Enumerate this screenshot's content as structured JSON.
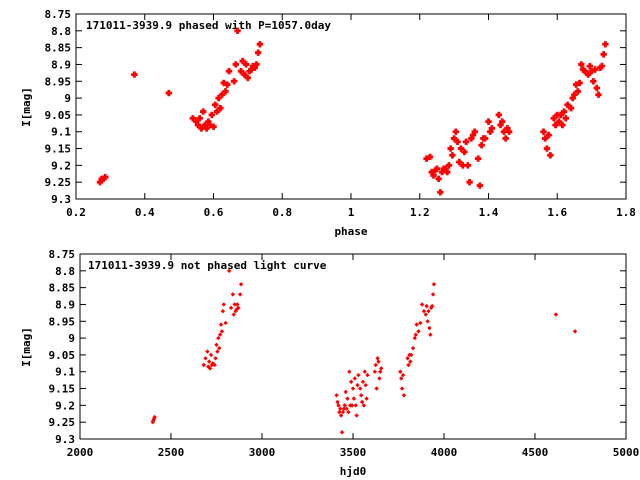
{
  "chart_data": [
    {
      "type": "scatter",
      "title": "171011-3939.9 phased with P=1057.0day",
      "xlabel": "phase",
      "ylabel": "I[mag]",
      "xlim": [
        0.2,
        1.8
      ],
      "ylim": [
        8.75,
        9.3
      ],
      "y_inverted": true,
      "grid": false,
      "color": "#ff0000",
      "xticks": [
        0.2,
        0.4,
        0.6,
        0.8,
        1.0,
        1.2,
        1.4,
        1.6,
        1.8
      ],
      "xtick_labels": [
        "0.2",
        "0.4",
        "0.6",
        "0.8",
        "1",
        "1.2",
        "1.4",
        "1.6",
        "1.8"
      ],
      "yticks": [
        8.75,
        8.8,
        8.85,
        8.9,
        8.95,
        9.0,
        9.05,
        9.1,
        9.15,
        9.2,
        9.25,
        9.3
      ],
      "ytick_labels": [
        "8.75",
        "8.8",
        "8.85",
        "8.9",
        "8.95",
        "9",
        "9.05",
        "9.1",
        "9.15",
        "9.2",
        "9.25",
        "9.3"
      ],
      "points": [
        [
          0.27,
          9.25
        ],
        [
          0.275,
          9.24
        ],
        [
          0.28,
          9.24
        ],
        [
          0.285,
          9.235
        ],
        [
          0.37,
          8.93
        ],
        [
          0.47,
          8.985
        ],
        [
          0.54,
          9.06
        ],
        [
          0.55,
          9.07
        ],
        [
          0.555,
          9.08
        ],
        [
          0.56,
          9.06
        ],
        [
          0.565,
          9.09
        ],
        [
          0.57,
          9.04
        ],
        [
          0.575,
          9.08
        ],
        [
          0.58,
          9.09
        ],
        [
          0.585,
          9.07
        ],
        [
          0.59,
          9.08
        ],
        [
          0.595,
          9.05
        ],
        [
          0.6,
          9.085
        ],
        [
          0.605,
          9.02
        ],
        [
          0.61,
          9.04
        ],
        [
          0.615,
          9.0
        ],
        [
          0.62,
          9.03
        ],
        [
          0.625,
          8.99
        ],
        [
          0.63,
          8.955
        ],
        [
          0.635,
          8.98
        ],
        [
          0.64,
          8.96
        ],
        [
          0.645,
          8.92
        ],
        [
          0.66,
          8.95
        ],
        [
          0.665,
          8.9
        ],
        [
          0.67,
          8.8
        ],
        [
          0.68,
          8.92
        ],
        [
          0.685,
          8.89
        ],
        [
          0.69,
          8.93
        ],
        [
          0.695,
          8.9
        ],
        [
          0.7,
          8.94
        ],
        [
          0.705,
          8.92
        ],
        [
          0.71,
          8.915
        ],
        [
          0.715,
          8.905
        ],
        [
          0.72,
          8.91
        ],
        [
          0.725,
          8.9
        ],
        [
          0.73,
          8.865
        ],
        [
          0.735,
          8.84
        ],
        [
          1.22,
          9.18
        ],
        [
          1.23,
          9.175
        ],
        [
          1.235,
          9.22
        ],
        [
          1.24,
          9.23
        ],
        [
          1.245,
          9.215
        ],
        [
          1.25,
          9.21
        ],
        [
          1.255,
          9.24
        ],
        [
          1.26,
          9.28
        ],
        [
          1.265,
          9.22
        ],
        [
          1.27,
          9.21
        ],
        [
          1.275,
          9.21
        ],
        [
          1.28,
          9.22
        ],
        [
          1.285,
          9.2
        ],
        [
          1.29,
          9.15
        ],
        [
          1.295,
          9.17
        ],
        [
          1.3,
          9.12
        ],
        [
          1.305,
          9.1
        ],
        [
          1.31,
          9.13
        ],
        [
          1.315,
          9.19
        ],
        [
          1.32,
          9.15
        ],
        [
          1.325,
          9.2
        ],
        [
          1.33,
          9.16
        ],
        [
          1.335,
          9.13
        ],
        [
          1.34,
          9.2
        ],
        [
          1.345,
          9.25
        ],
        [
          1.35,
          9.12
        ],
        [
          1.355,
          9.11
        ],
        [
          1.36,
          9.1
        ],
        [
          1.37,
          9.18
        ],
        [
          1.375,
          9.26
        ],
        [
          1.38,
          9.14
        ],
        [
          1.385,
          9.12
        ],
        [
          1.39,
          9.12
        ],
        [
          1.4,
          9.07
        ],
        [
          1.405,
          9.1
        ],
        [
          1.41,
          9.09
        ],
        [
          1.43,
          9.05
        ],
        [
          1.435,
          9.08
        ],
        [
          1.44,
          9.07
        ],
        [
          1.445,
          9.1
        ],
        [
          1.45,
          9.12
        ],
        [
          1.455,
          9.09
        ],
        [
          1.46,
          9.1
        ],
        [
          1.56,
          9.1
        ],
        [
          1.565,
          9.12
        ],
        [
          1.57,
          9.15
        ],
        [
          1.575,
          9.11
        ],
        [
          1.58,
          9.17
        ],
        [
          1.59,
          9.06
        ],
        [
          1.595,
          9.08
        ],
        [
          1.6,
          9.05
        ],
        [
          1.605,
          9.07
        ],
        [
          1.61,
          9.05
        ],
        [
          1.615,
          9.08
        ],
        [
          1.62,
          9.04
        ],
        [
          1.625,
          9.06
        ],
        [
          1.63,
          9.02
        ],
        [
          1.64,
          9.03
        ],
        [
          1.645,
          9.0
        ],
        [
          1.65,
          8.99
        ],
        [
          1.655,
          8.96
        ],
        [
          1.66,
          8.98
        ],
        [
          1.665,
          8.955
        ],
        [
          1.67,
          8.9
        ],
        [
          1.675,
          8.915
        ],
        [
          1.68,
          8.92
        ],
        [
          1.69,
          8.93
        ],
        [
          1.695,
          8.905
        ],
        [
          1.7,
          8.92
        ],
        [
          1.705,
          8.95
        ],
        [
          1.71,
          8.915
        ],
        [
          1.715,
          8.97
        ],
        [
          1.72,
          8.99
        ],
        [
          1.725,
          8.91
        ],
        [
          1.73,
          8.905
        ],
        [
          1.735,
          8.87
        ],
        [
          1.74,
          8.84
        ]
      ]
    },
    {
      "type": "scatter",
      "title": "171011-3939.9 not phased light curve",
      "xlabel": "hjd0",
      "ylabel": "I[mag]",
      "xlim": [
        2000,
        5000
      ],
      "ylim": [
        8.75,
        9.3
      ],
      "y_inverted": true,
      "grid": false,
      "color": "#ff0000",
      "xticks": [
        2000,
        2500,
        3000,
        3500,
        4000,
        4500,
        5000
      ],
      "xtick_labels": [
        "2000",
        "2500",
        "3000",
        "3500",
        "4000",
        "4500",
        "5000"
      ],
      "yticks": [
        8.75,
        8.8,
        8.85,
        8.9,
        8.95,
        9.0,
        9.05,
        9.1,
        9.15,
        9.2,
        9.25,
        9.3
      ],
      "ytick_labels": [
        "8.75",
        "8.8",
        "8.85",
        "8.9",
        "8.95",
        "9",
        "9.05",
        "9.1",
        "9.15",
        "9.2",
        "9.25",
        "9.3"
      ],
      "points": [
        [
          2400,
          9.25
        ],
        [
          2403,
          9.245
        ],
        [
          2407,
          9.24
        ],
        [
          2410,
          9.235
        ],
        [
          2680,
          9.08
        ],
        [
          2690,
          9.06
        ],
        [
          2700,
          9.04
        ],
        [
          2705,
          9.085
        ],
        [
          2710,
          9.07
        ],
        [
          2715,
          9.09
        ],
        [
          2720,
          9.05
        ],
        [
          2725,
          9.08
        ],
        [
          2730,
          9.075
        ],
        [
          2740,
          9.08
        ],
        [
          2745,
          9.06
        ],
        [
          2750,
          9.02
        ],
        [
          2755,
          9.04
        ],
        [
          2760,
          9.0
        ],
        [
          2765,
          9.03
        ],
        [
          2770,
          8.99
        ],
        [
          2775,
          8.96
        ],
        [
          2780,
          8.98
        ],
        [
          2785,
          8.92
        ],
        [
          2790,
          8.9
        ],
        [
          2800,
          8.955
        ],
        [
          2820,
          8.8
        ],
        [
          2830,
          8.91
        ],
        [
          2840,
          8.87
        ],
        [
          2845,
          8.93
        ],
        [
          2850,
          8.9
        ],
        [
          2855,
          8.92
        ],
        [
          2860,
          8.915
        ],
        [
          2865,
          8.9
        ],
        [
          2870,
          8.91
        ],
        [
          2880,
          8.87
        ],
        [
          2885,
          8.84
        ],
        [
          3410,
          9.17
        ],
        [
          3415,
          9.19
        ],
        [
          3420,
          9.2
        ],
        [
          3425,
          9.22
        ],
        [
          3430,
          9.21
        ],
        [
          3435,
          9.23
        ],
        [
          3440,
          9.28
        ],
        [
          3445,
          9.22
        ],
        [
          3450,
          9.21
        ],
        [
          3455,
          9.2
        ],
        [
          3460,
          9.16
        ],
        [
          3465,
          9.21
        ],
        [
          3470,
          9.18
        ],
        [
          3475,
          9.22
        ],
        [
          3480,
          9.1
        ],
        [
          3485,
          9.2
        ],
        [
          3490,
          9.13
        ],
        [
          3495,
          9.2
        ],
        [
          3500,
          9.15
        ],
        [
          3505,
          9.18
        ],
        [
          3510,
          9.12
        ],
        [
          3515,
          9.2
        ],
        [
          3520,
          9.23
        ],
        [
          3525,
          9.14
        ],
        [
          3530,
          9.11
        ],
        [
          3540,
          9.15
        ],
        [
          3545,
          9.17
        ],
        [
          3550,
          9.19
        ],
        [
          3555,
          9.13
        ],
        [
          3560,
          9.2
        ],
        [
          3565,
          9.1
        ],
        [
          3570,
          9.14
        ],
        [
          3575,
          9.18
        ],
        [
          3580,
          9.11
        ],
        [
          3620,
          9.1
        ],
        [
          3625,
          9.08
        ],
        [
          3630,
          9.15
        ],
        [
          3635,
          9.06
        ],
        [
          3640,
          9.07
        ],
        [
          3645,
          9.12
        ],
        [
          3650,
          9.1
        ],
        [
          3655,
          9.09
        ],
        [
          3760,
          9.1
        ],
        [
          3765,
          9.12
        ],
        [
          3770,
          9.15
        ],
        [
          3775,
          9.11
        ],
        [
          3780,
          9.17
        ],
        [
          3800,
          9.06
        ],
        [
          3805,
          9.08
        ],
        [
          3810,
          9.05
        ],
        [
          3815,
          9.07
        ],
        [
          3820,
          9.05
        ],
        [
          3830,
          9.03
        ],
        [
          3840,
          9.0
        ],
        [
          3845,
          8.99
        ],
        [
          3850,
          8.96
        ],
        [
          3860,
          8.98
        ],
        [
          3870,
          8.955
        ],
        [
          3880,
          8.9
        ],
        [
          3890,
          8.92
        ],
        [
          3900,
          8.93
        ],
        [
          3905,
          8.905
        ],
        [
          3910,
          8.95
        ],
        [
          3915,
          8.92
        ],
        [
          3920,
          8.97
        ],
        [
          3925,
          8.99
        ],
        [
          3930,
          8.91
        ],
        [
          3935,
          8.905
        ],
        [
          3940,
          8.87
        ],
        [
          3945,
          8.84
        ],
        [
          4615,
          8.93
        ],
        [
          4720,
          8.98
        ]
      ]
    }
  ]
}
